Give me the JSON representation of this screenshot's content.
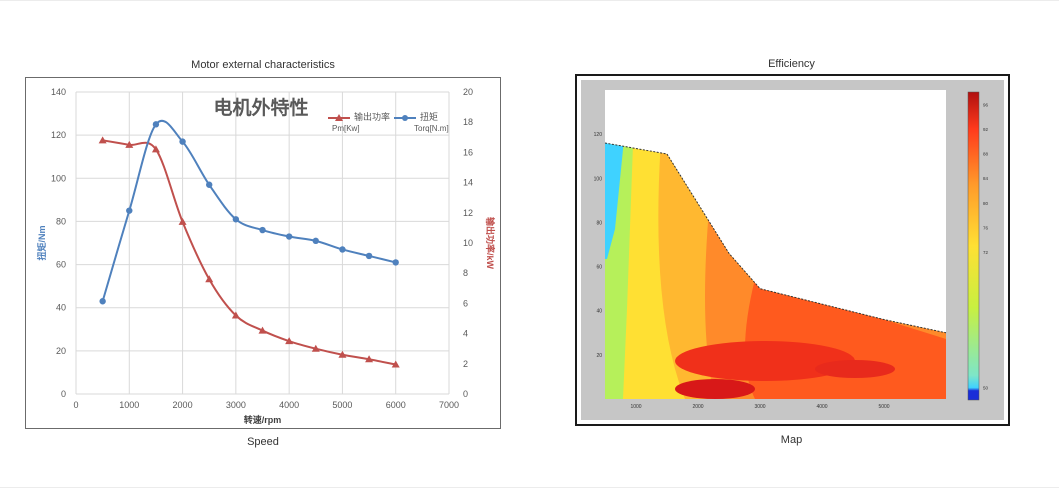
{
  "left_figure": {
    "title": "Motor external characteristics",
    "caption": "Speed"
  },
  "right_figure": {
    "title": "Efficiency",
    "caption": "Map"
  },
  "chart_data": [
    {
      "type": "line",
      "title": "电机外特性",
      "xlabel": "转速/rpm",
      "ylabel": "扭矩/Nm",
      "y2label": "输出功率/kW",
      "xlim": [
        0,
        7000
      ],
      "ylim": [
        0,
        140
      ],
      "y2lim": [
        0,
        20
      ],
      "xticks": [
        0,
        1000,
        2000,
        3000,
        4000,
        5000,
        6000,
        7000
      ],
      "yticks": [
        0,
        20,
        40,
        60,
        80,
        100,
        120,
        140
      ],
      "y2ticks": [
        0,
        2,
        4,
        6,
        8,
        10,
        12,
        14,
        16,
        18,
        20
      ],
      "grid": true,
      "legend_position": "top-right",
      "series": [
        {
          "name": "输出功率",
          "unit": "Pm[Kw]",
          "axis": "right",
          "color": "#c0504d",
          "marker": "triangle",
          "x": [
            500,
            1000,
            1500,
            2000,
            2500,
            3000,
            3500,
            4000,
            4500,
            5000,
            5500,
            6000
          ],
          "values": [
            16.8,
            16.5,
            16.2,
            11.4,
            7.6,
            5.2,
            4.2,
            3.5,
            3.0,
            2.6,
            2.3,
            1.95
          ]
        },
        {
          "name": "扭矩",
          "unit": "Torq[N.m]",
          "axis": "left",
          "color": "#4f81bd",
          "marker": "circle",
          "x": [
            500,
            1000,
            1500,
            2000,
            2500,
            3000,
            3500,
            4000,
            4500,
            5000,
            5500,
            6000
          ],
          "values": [
            43,
            85,
            125,
            117,
            97,
            81,
            76,
            73,
            71,
            67,
            64,
            61
          ]
        }
      ]
    },
    {
      "type": "heatmap",
      "xlim": [
        500,
        6000
      ],
      "ylim": [
        0,
        140
      ],
      "xticks": [
        1000,
        2000,
        3000,
        4000,
        5000
      ],
      "yticks": [
        20,
        40,
        60,
        80,
        100,
        120
      ],
      "colorbar_min": 50,
      "colorbar_max": 96,
      "colorbar_ticks": [
        50,
        72,
        76,
        80,
        84,
        88,
        92,
        96
      ],
      "boundary_x": [
        500,
        1500,
        2500,
        3000,
        4000,
        5000,
        6000
      ],
      "boundary_y": [
        116,
        111,
        66,
        50,
        43,
        36,
        30
      ]
    }
  ]
}
